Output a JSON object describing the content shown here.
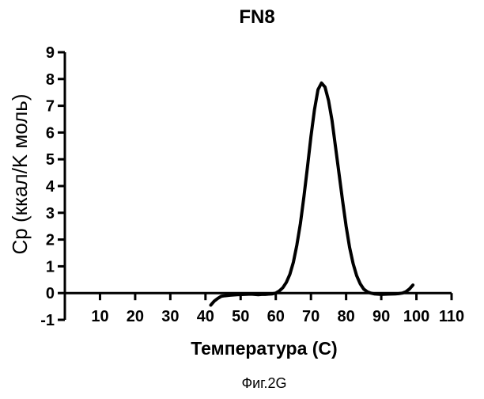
{
  "chart_data": {
    "type": "line",
    "title": "FN8",
    "xlabel": "Температура (С)",
    "ylabel": "Cp (ккал/K моль)",
    "caption": "Фиг.2G",
    "xlim": [
      0,
      110
    ],
    "ylim": [
      -1,
      9
    ],
    "x_ticks": [
      10,
      20,
      30,
      40,
      50,
      60,
      70,
      80,
      90,
      100,
      110
    ],
    "y_ticks": [
      -1,
      0,
      1,
      2,
      3,
      4,
      5,
      6,
      7,
      8,
      9
    ],
    "grid": false,
    "legend": "none",
    "series": [
      {
        "color": "#000000",
        "x": [
          41.5,
          42.5,
          43.5,
          44.5,
          45.5,
          47,
          49,
          51,
          53,
          55,
          56,
          57,
          58,
          59,
          60,
          61,
          62,
          63,
          64,
          65,
          66,
          67,
          68,
          69,
          70,
          71,
          72,
          73,
          74,
          75,
          76,
          77,
          78,
          79,
          80,
          81,
          82,
          83,
          84,
          85,
          86,
          87,
          88,
          90,
          92,
          94,
          95,
          96,
          97,
          98,
          99
        ],
        "y": [
          -0.45,
          -0.3,
          -0.2,
          -0.12,
          -0.1,
          -0.08,
          -0.06,
          -0.05,
          -0.04,
          -0.06,
          -0.05,
          -0.05,
          -0.04,
          -0.03,
          0,
          0.08,
          0.2,
          0.4,
          0.7,
          1.15,
          1.8,
          2.6,
          3.6,
          4.7,
          5.85,
          6.85,
          7.6,
          7.85,
          7.7,
          7.2,
          6.45,
          5.45,
          4.45,
          3.45,
          2.5,
          1.7,
          1.1,
          0.65,
          0.35,
          0.15,
          0.05,
          0,
          -0.03,
          -0.05,
          -0.04,
          -0.03,
          -0.02,
          0,
          0.05,
          0.15,
          0.3
        ]
      }
    ]
  }
}
